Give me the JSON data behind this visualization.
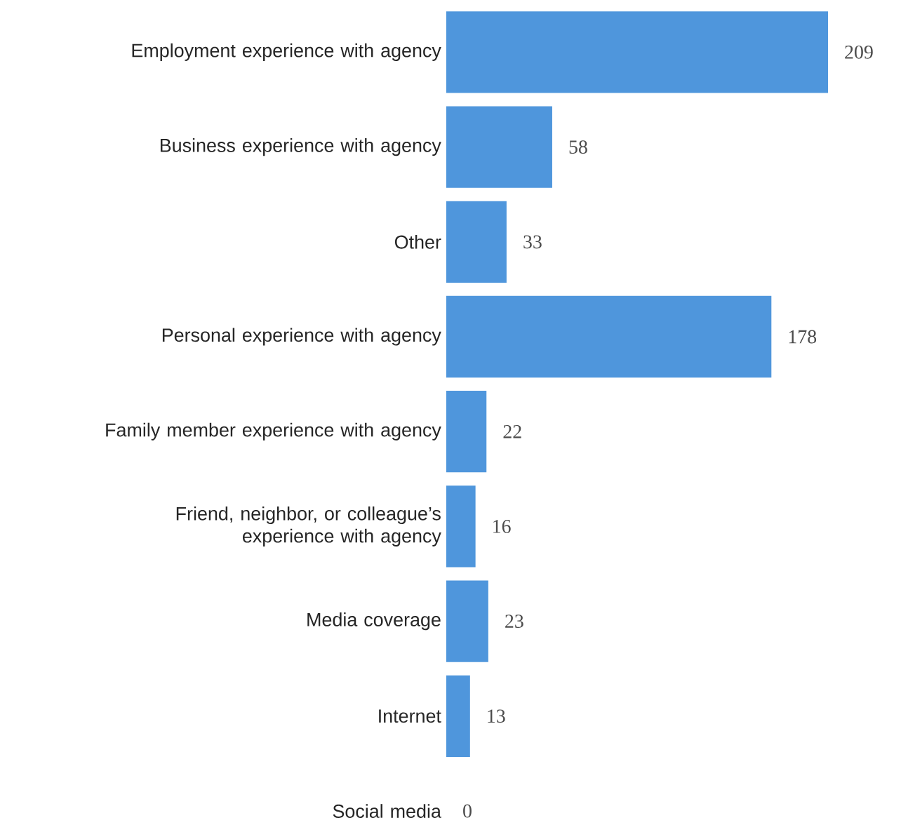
{
  "chart_data": {
    "type": "bar",
    "orientation": "horizontal",
    "data_labels": true,
    "color": "#4f96dc",
    "categories": [
      "Employment experience with agency",
      "Business experience with agency",
      "Other",
      "Personal experience with agency",
      "Family member experience with agency",
      "Friend, neighbor, or colleague’s experience with agency",
      "Media coverage",
      "Internet",
      "Social media"
    ],
    "values": [
      209,
      58,
      33,
      178,
      22,
      16,
      23,
      13,
      0
    ]
  }
}
